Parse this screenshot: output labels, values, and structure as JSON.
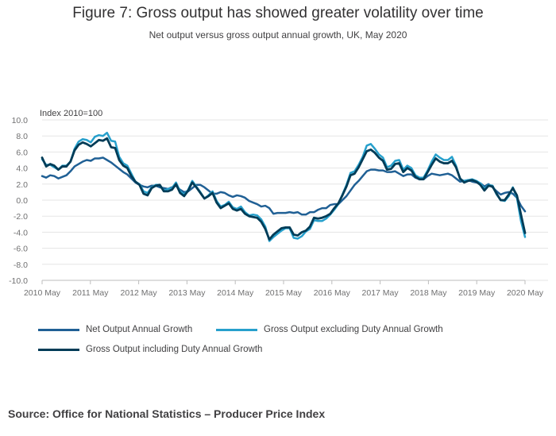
{
  "title": "Figure 7: Gross output has showed greater volatility over time",
  "subtitle": "Net output versus gross output annual growth, UK, May 2020",
  "source": "Source: Office for National Statistics – Producer Price Index",
  "chart_data": {
    "type": "line",
    "ylabel": "Index 2010=100",
    "xlabel": "",
    "ylim": [
      -10,
      10
    ],
    "yticks": [
      "10.0",
      "8.0",
      "6.0",
      "4.0",
      "2.0",
      "0.0",
      "-2.0",
      "-4.0",
      "-6.0",
      "-8.0",
      "-10.0"
    ],
    "xticks": [
      "2010 May",
      "2011 May",
      "2012 May",
      "2013 May",
      "2014 May",
      "2015 May",
      "2016 May",
      "2017 May",
      "2018 May",
      "2019 May",
      "2020 May"
    ],
    "grid": true,
    "legend_position": "bottom",
    "series": [
      {
        "name": "Net Output Annual Growth",
        "color": "#206095",
        "values": [
          3.0,
          2.8,
          3.1,
          3.0,
          2.7,
          2.9,
          3.1,
          3.6,
          4.2,
          4.5,
          4.8,
          5.0,
          4.9,
          5.2,
          5.2,
          5.3,
          5.0,
          4.7,
          4.3,
          3.9,
          3.5,
          3.2,
          2.7,
          2.2,
          1.9,
          1.7,
          1.6,
          1.8,
          1.8,
          1.6,
          1.5,
          1.4,
          1.6,
          1.8,
          1.3,
          1.0,
          1.1,
          1.5,
          1.9,
          1.9,
          1.6,
          1.2,
          0.8,
          0.8,
          1.0,
          0.9,
          0.6,
          0.4,
          0.6,
          0.5,
          0.3,
          -0.1,
          -0.3,
          -0.5,
          -0.8,
          -0.7,
          -1.0,
          -1.7,
          -1.6,
          -1.6,
          -1.6,
          -1.5,
          -1.6,
          -1.5,
          -1.8,
          -1.8,
          -1.5,
          -1.5,
          -1.2,
          -1.0,
          -1.0,
          -0.6,
          -0.5,
          -0.5,
          0.0,
          0.5,
          1.2,
          1.9,
          2.4,
          3.0,
          3.6,
          3.8,
          3.8,
          3.7,
          3.7,
          3.5,
          3.5,
          3.6,
          3.3,
          3.0,
          3.2,
          3.2,
          2.8,
          2.6,
          2.6,
          3.0,
          3.3,
          3.2,
          3.1,
          3.2,
          3.3,
          3.1,
          2.7,
          2.3,
          2.4,
          2.5,
          2.3,
          2.2,
          2.1,
          1.7,
          2.0,
          1.6,
          1.1,
          0.7,
          0.9,
          1.0,
          0.8,
          0.3,
          -0.7,
          -1.4
        ]
      },
      {
        "name": "Gross Output excluding Duty Annual Growth",
        "color": "#27a0cc",
        "values": [
          5.1,
          4.4,
          4.4,
          4.1,
          3.8,
          4.3,
          4.3,
          4.8,
          6.4,
          7.3,
          7.6,
          7.5,
          7.2,
          7.9,
          8.1,
          8.0,
          8.4,
          7.4,
          7.3,
          5.4,
          4.6,
          4.3,
          3.3,
          2.3,
          2.0,
          1.1,
          0.9,
          1.6,
          1.9,
          1.9,
          1.2,
          1.4,
          1.5,
          2.2,
          1.1,
          0.7,
          1.3,
          2.4,
          1.7,
          1.0,
          0.2,
          0.6,
          1.1,
          -0.1,
          -0.8,
          -0.6,
          -0.2,
          -0.9,
          -1.1,
          -0.8,
          -1.5,
          -1.9,
          -1.8,
          -1.9,
          -2.4,
          -3.3,
          -5.1,
          -4.6,
          -4.2,
          -3.8,
          -3.5,
          -3.5,
          -4.7,
          -4.8,
          -4.5,
          -3.9,
          -3.6,
          -2.5,
          -2.6,
          -2.6,
          -2.3,
          -1.8,
          -1.2,
          -0.5,
          0.7,
          1.9,
          3.4,
          3.6,
          4.4,
          5.4,
          6.8,
          7.0,
          6.4,
          5.7,
          5.3,
          4.1,
          4.3,
          4.9,
          5.0,
          3.8,
          4.3,
          4.0,
          3.1,
          2.8,
          2.8,
          3.7,
          4.8,
          5.7,
          5.3,
          5.0,
          5.0,
          5.4,
          4.3,
          2.6,
          2.4,
          2.5,
          2.6,
          2.4,
          2.1,
          1.4,
          1.9,
          1.8,
          0.7,
          0.0,
          -0.1,
          0.5,
          1.6,
          0.3,
          -2.6,
          -4.6
        ]
      },
      {
        "name": "Gross Output including Duty Annual Growth",
        "color": "#003c57",
        "values": [
          5.3,
          4.2,
          4.5,
          4.3,
          3.8,
          4.2,
          4.2,
          4.8,
          6.2,
          6.9,
          7.2,
          7.0,
          6.7,
          7.1,
          7.5,
          7.4,
          7.7,
          6.6,
          6.5,
          5.0,
          4.3,
          4.0,
          3.0,
          2.3,
          1.9,
          0.8,
          0.6,
          1.5,
          1.8,
          1.9,
          1.1,
          1.1,
          1.3,
          2.0,
          0.9,
          0.5,
          1.2,
          2.2,
          1.6,
          0.9,
          0.2,
          0.5,
          0.9,
          -0.3,
          -1.0,
          -0.7,
          -0.4,
          -1.1,
          -1.3,
          -1.1,
          -1.7,
          -2.0,
          -2.1,
          -2.2,
          -2.7,
          -3.6,
          -4.9,
          -4.3,
          -3.9,
          -3.5,
          -3.4,
          -3.4,
          -4.3,
          -4.4,
          -4.0,
          -3.8,
          -3.3,
          -2.2,
          -2.3,
          -2.2,
          -2.0,
          -1.7,
          -1.0,
          -0.4,
          0.6,
          1.7,
          3.1,
          3.3,
          4.1,
          5.1,
          6.1,
          6.3,
          5.9,
          5.3,
          4.9,
          3.8,
          3.9,
          4.5,
          4.6,
          3.5,
          4.0,
          3.7,
          2.9,
          2.6,
          2.6,
          3.5,
          4.4,
          5.2,
          4.8,
          4.6,
          4.6,
          4.9,
          4.1,
          2.7,
          2.2,
          2.4,
          2.5,
          2.3,
          1.9,
          1.2,
          1.8,
          1.7,
          0.8,
          0.0,
          0.0,
          0.7,
          1.5,
          0.6,
          -1.8,
          -4.1
        ]
      }
    ]
  }
}
